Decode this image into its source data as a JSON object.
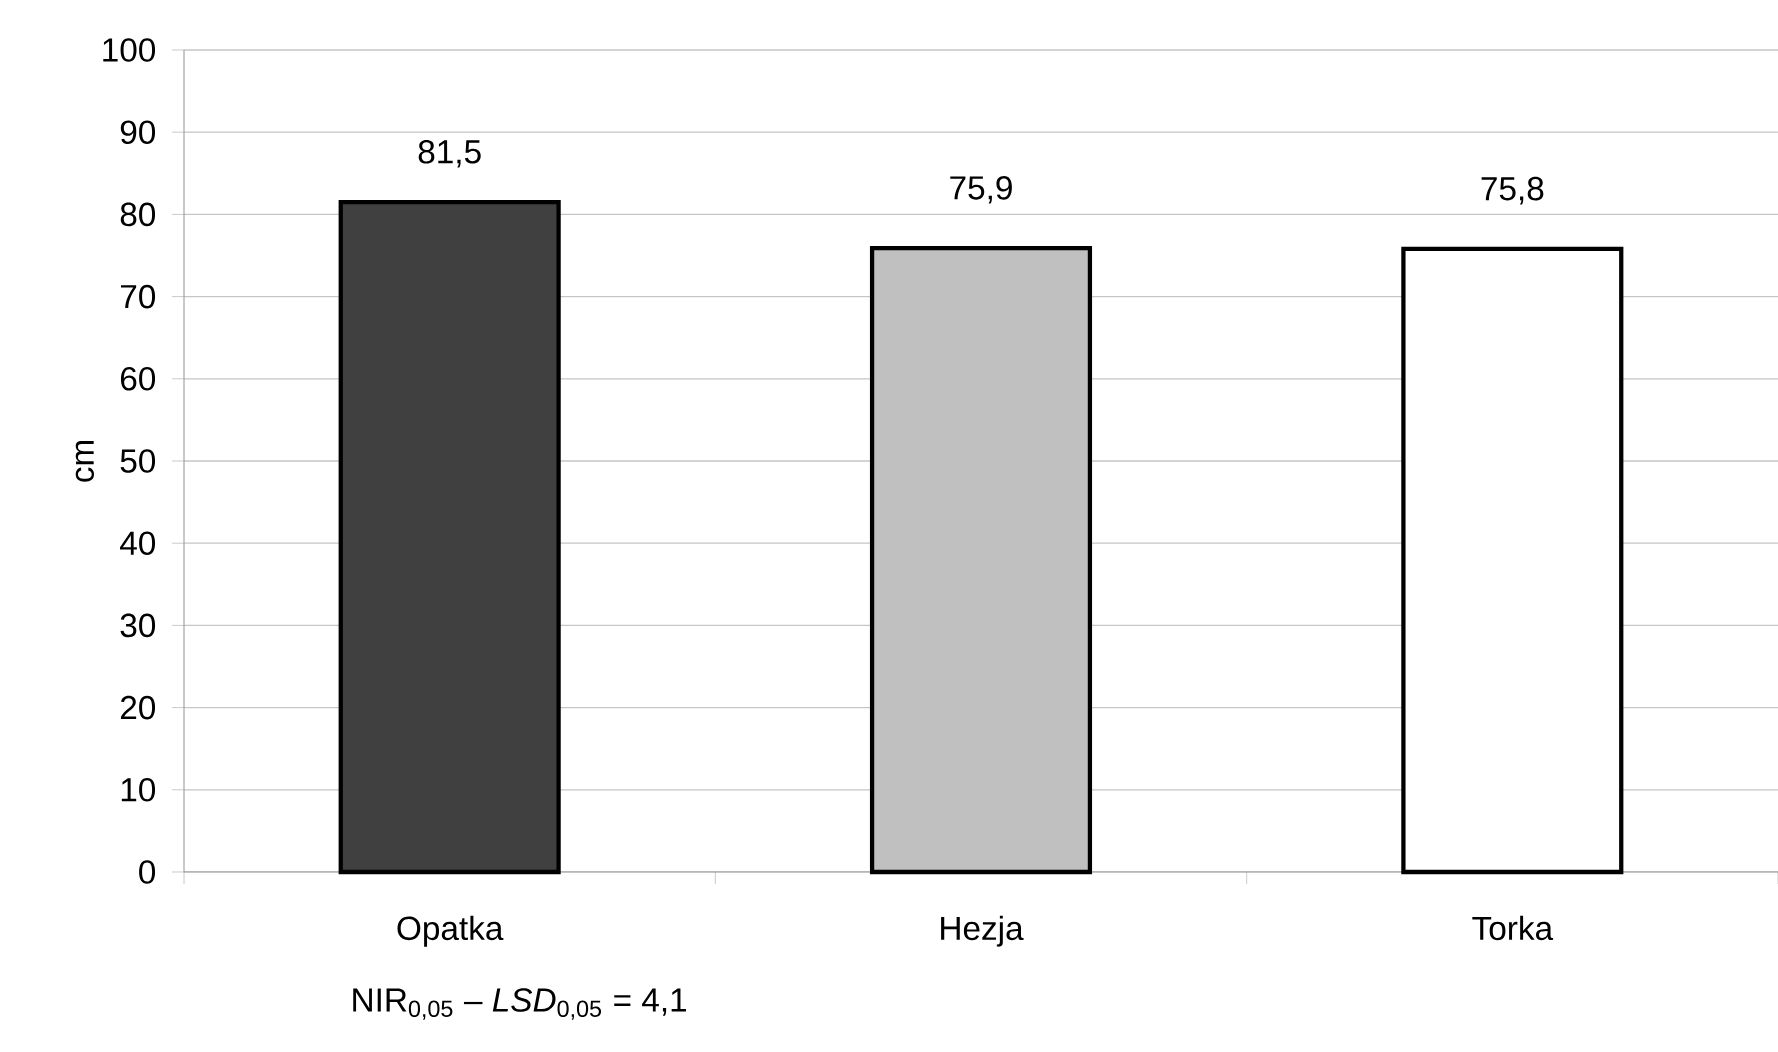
{
  "chart_data": {
    "type": "bar",
    "ylabel": "cm",
    "categories": [
      "Opatka",
      "Hezja",
      "Torka"
    ],
    "values": [
      81.5,
      75.9,
      75.8
    ],
    "value_labels": [
      "81,5",
      "75,9",
      "75,8"
    ],
    "colors": [
      "#404040",
      "#c0c0c0",
      "#ffffff"
    ],
    "ylim": [
      0,
      100
    ],
    "yticks": [
      0,
      10,
      20,
      30,
      40,
      50,
      60,
      70,
      80,
      90,
      100
    ],
    "grid": "y",
    "annotations": [
      "NIR$_{0,05}$ – *LSD*$_{0,05}$ = 4,1"
    ]
  }
}
